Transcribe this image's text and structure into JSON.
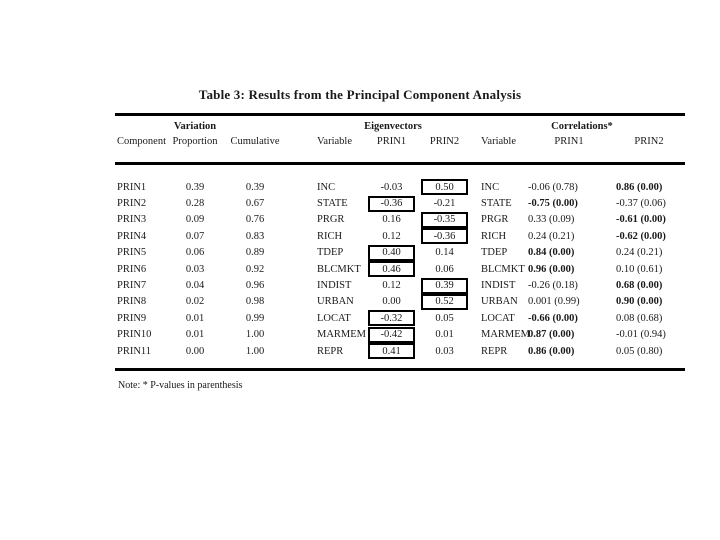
{
  "title": "Table 3: Results from the Principal Component Analysis",
  "table": {
    "group_headers": {
      "variation": "Variation",
      "eigenvectors": "Eigenvectors",
      "correlations": "Correlations*"
    },
    "column_headers": {
      "component": "Component",
      "proportion": "Proportion",
      "cumulative": "Cumulative",
      "eig_variable": "Variable",
      "eig_prin1": "PRIN1",
      "eig_prin2": "PRIN2",
      "corr_variable": "Variable",
      "corr_prin1": "PRIN1",
      "corr_prin2": "PRIN2"
    },
    "rows": [
      {
        "component": "PRIN1",
        "proportion": "0.39",
        "cumulative": "0.39",
        "variable": "INC",
        "eig1": "-0.03",
        "eig1_boxed": false,
        "eig2": "0.50",
        "eig2_boxed": true,
        "corr1": "-0.06 (0.78)",
        "corr1_bold": false,
        "corr2": "0.86 (0.00)",
        "corr2_bold": true
      },
      {
        "component": "PRIN2",
        "proportion": "0.28",
        "cumulative": "0.67",
        "variable": "STATE",
        "eig1": "-0.36",
        "eig1_boxed": true,
        "eig2": "-0.21",
        "eig2_boxed": false,
        "corr1": "-0.75 (0.00)",
        "corr1_bold": true,
        "corr2": "-0.37 (0.06)",
        "corr2_bold": false
      },
      {
        "component": "PRIN3",
        "proportion": "0.09",
        "cumulative": "0.76",
        "variable": "PRGR",
        "eig1": "0.16",
        "eig1_boxed": false,
        "eig2": "-0.35",
        "eig2_boxed": true,
        "corr1": "0.33 (0.09)",
        "corr1_bold": false,
        "corr2": "-0.61 (0.00)",
        "corr2_bold": true
      },
      {
        "component": "PRIN4",
        "proportion": "0.07",
        "cumulative": "0.83",
        "variable": "RICH",
        "eig1": "0.12",
        "eig1_boxed": false,
        "eig2": "-0.36",
        "eig2_boxed": true,
        "corr1": "0.24 (0.21)",
        "corr1_bold": false,
        "corr2": "-0.62 (0.00)",
        "corr2_bold": true
      },
      {
        "component": "PRIN5",
        "proportion": "0.06",
        "cumulative": "0.89",
        "variable": "TDEP",
        "eig1": "0.40",
        "eig1_boxed": true,
        "eig2": "0.14",
        "eig2_boxed": false,
        "corr1": "0.84 (0.00)",
        "corr1_bold": true,
        "corr2": "0.24 (0.21)",
        "corr2_bold": false
      },
      {
        "component": "PRIN6",
        "proportion": "0.03",
        "cumulative": "0.92",
        "variable": "BLCMKT",
        "eig1": "0.46",
        "eig1_boxed": true,
        "eig2": "0.06",
        "eig2_boxed": false,
        "corr1": "0.96 (0.00)",
        "corr1_bold": true,
        "corr2": "0.10 (0.61)",
        "corr2_bold": false
      },
      {
        "component": "PRIN7",
        "proportion": "0.04",
        "cumulative": "0.96",
        "variable": "INDIST",
        "eig1": "0.12",
        "eig1_boxed": false,
        "eig2": "0.39",
        "eig2_boxed": true,
        "corr1": "-0.26 (0.18)",
        "corr1_bold": false,
        "corr2": "0.68 (0.00)",
        "corr2_bold": true
      },
      {
        "component": "PRIN8",
        "proportion": "0.02",
        "cumulative": "0.98",
        "variable": "URBAN",
        "eig1": "0.00",
        "eig1_boxed": false,
        "eig2": "0.52",
        "eig2_boxed": true,
        "corr1": "0.001 (0.99)",
        "corr1_bold": false,
        "corr2": "0.90 (0.00)",
        "corr2_bold": true
      },
      {
        "component": "PRIN9",
        "proportion": "0.01",
        "cumulative": "0.99",
        "variable": "LOCAT",
        "eig1": "-0.32",
        "eig1_boxed": true,
        "eig2": "0.05",
        "eig2_boxed": false,
        "corr1": "-0.66 (0.00)",
        "corr1_bold": true,
        "corr2": "0.08 (0.68)",
        "corr2_bold": false
      },
      {
        "component": "PRIN10",
        "proportion": "0.01",
        "cumulative": "1.00",
        "variable": "MARMEM",
        "eig1": "-0.42",
        "eig1_boxed": true,
        "eig2": "0.01",
        "eig2_boxed": false,
        "corr1": "0.87 (0.00)",
        "corr1_bold": true,
        "corr2": "-0.01 (0.94)",
        "corr2_bold": false
      },
      {
        "component": "PRIN11",
        "proportion": "0.00",
        "cumulative": "1.00",
        "variable": "REPR",
        "eig1": "0.41",
        "eig1_boxed": true,
        "eig2": "0.03",
        "eig2_boxed": false,
        "corr1": "0.86 (0.00)",
        "corr1_bold": true,
        "corr2": "0.05 (0.80)",
        "corr2_bold": false
      }
    ]
  },
  "footnote": "Note: * P-values in parenthesis"
}
